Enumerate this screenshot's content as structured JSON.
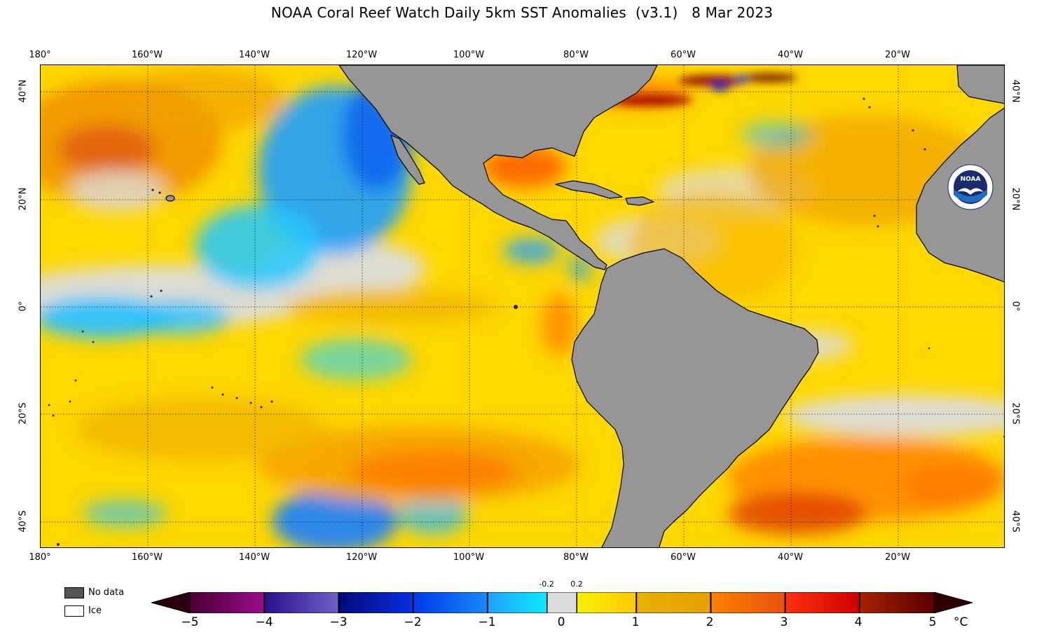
{
  "title": "NOAA Coral Reef Watch Daily 5km SST Anomalies  (v3.1)   8 Mar 2023",
  "map": {
    "projection": "equirectangular",
    "lon_range": [
      -180,
      0
    ],
    "lat_range": [
      -45,
      45
    ],
    "land_color": "#969696",
    "grid_style": "dotted"
  },
  "lon_labels": [
    "180°",
    "160°W",
    "140°W",
    "120°W",
    "100°W",
    "80°W",
    "60°W",
    "40°W",
    "20°W"
  ],
  "lat_labels_left": [
    "40°N",
    "20°N",
    "0°",
    "20°S",
    "40°S"
  ],
  "lat_labels_right": [
    "40°N",
    "20°N",
    "0°",
    "20°S",
    "40°S"
  ],
  "legend_keys": [
    {
      "label": "No data",
      "color": "#555555"
    },
    {
      "label": "Ice",
      "color": "#ffffff"
    }
  ],
  "colorbar": {
    "ticks": [
      "−5",
      "−4",
      "−3",
      "−2",
      "−1",
      "0",
      "1",
      "2",
      "3",
      "4",
      "5"
    ],
    "small_ticks": [
      "-0.2",
      "0.2"
    ],
    "unit": "°C",
    "range": [
      -5,
      5
    ],
    "stops": [
      {
        "v": -5,
        "color": "#4a0033"
      },
      {
        "v": -4.01,
        "color": "#9c0a8c"
      },
      {
        "v": -4,
        "color": "#2a0f8f"
      },
      {
        "v": -3.01,
        "color": "#7060c8"
      },
      {
        "v": -3,
        "color": "#000a7a"
      },
      {
        "v": -2.01,
        "color": "#0a2ee0"
      },
      {
        "v": -2,
        "color": "#0038e8"
      },
      {
        "v": -1.01,
        "color": "#1a88ff"
      },
      {
        "v": -1,
        "color": "#1ea0ff"
      },
      {
        "v": -0.21,
        "color": "#10e8ff"
      },
      {
        "v": -0.2,
        "color": "#dcdcdc"
      },
      {
        "v": 0.2,
        "color": "#dcdcdc"
      },
      {
        "v": 0.21,
        "color": "#f5f000"
      },
      {
        "v": 1,
        "color": "#ffc800"
      },
      {
        "v": 1.01,
        "color": "#e8b000"
      },
      {
        "v": 2,
        "color": "#e8a000"
      },
      {
        "v": 2.01,
        "color": "#ff8000"
      },
      {
        "v": 3,
        "color": "#e85010"
      },
      {
        "v": 3.01,
        "color": "#ff3010"
      },
      {
        "v": 4,
        "color": "#d00000"
      },
      {
        "v": 4.01,
        "color": "#a82000"
      },
      {
        "v": 5,
        "color": "#5a0000"
      }
    ],
    "end_colors": {
      "low": "#2a0010",
      "high": "#300000"
    }
  },
  "logo_text": "NOAA"
}
